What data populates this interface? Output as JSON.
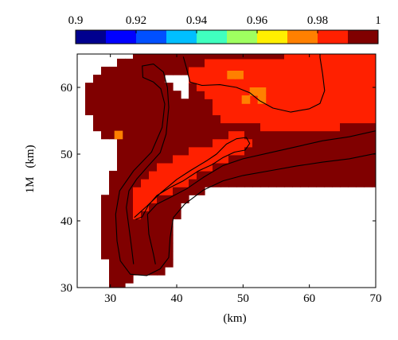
{
  "chart_data": {
    "type": "heatmap",
    "title": "",
    "ylabel_prefix": "1M",
    "ylabel": "(km)",
    "xlabel": "(km)",
    "xlim": [
      25,
      70
    ],
    "ylim": [
      30,
      65
    ],
    "x_ticks": [
      30,
      40,
      50,
      60,
      70
    ],
    "y_ticks": [
      30,
      40,
      50,
      60
    ],
    "grid": false,
    "colorbar": {
      "position": "top",
      "range": [
        0.9,
        1.0
      ],
      "ticks": [
        "0.9",
        "0.92",
        "0.94",
        "0.96",
        "0.98",
        "1"
      ],
      "levels": [
        0.9,
        0.91,
        0.92,
        0.93,
        0.94,
        0.95,
        0.96,
        0.97,
        0.98,
        0.99
      ],
      "colors": [
        "#00008f",
        "#0000ff",
        "#0050ff",
        "#00bfff",
        "#40ffbf",
        "#9fff60",
        "#ffef00",
        "#ff8000",
        "#ff2000",
        "#800000"
      ]
    },
    "regions": [
      {
        "name": "domain",
        "value": 0.995,
        "color": "#800000"
      },
      {
        "name": "inner-band",
        "value": 0.985,
        "color": "#ff2000"
      },
      {
        "name": "upper-plateau",
        "value": 0.985,
        "color": "#ff2000"
      },
      {
        "name": "spots",
        "value": 0.975,
        "color": "#ff8000"
      }
    ],
    "contour_levels": 4
  }
}
